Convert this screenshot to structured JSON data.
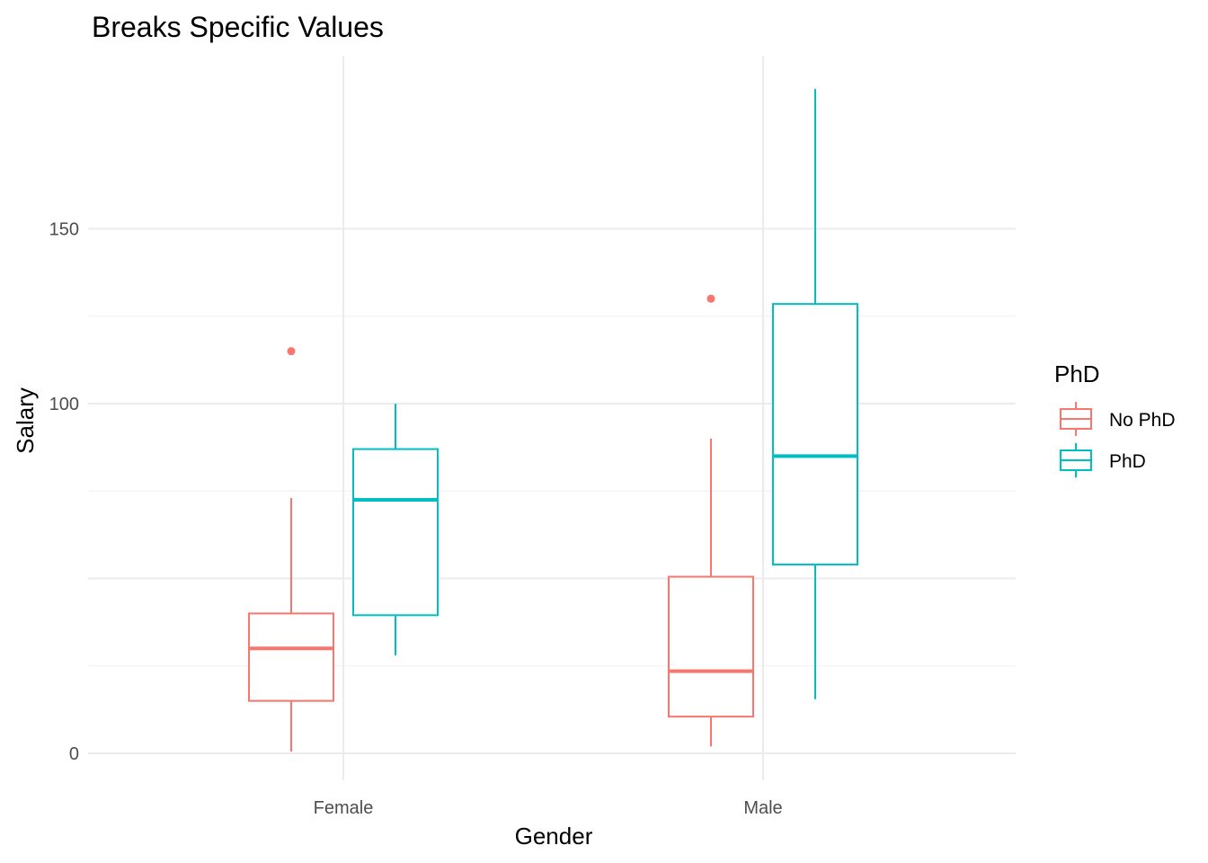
{
  "chart_data": {
    "type": "boxplot",
    "title": "Breaks Specific Values",
    "xlabel": "Gender",
    "ylabel": "Salary",
    "categories": [
      "Female",
      "Male"
    ],
    "ylim": [
      -8,
      190
    ],
    "y_ticks": [
      0,
      50,
      100,
      150
    ],
    "y_tick_labels": [
      "0",
      "",
      "100",
      "150"
    ],
    "grid": true,
    "legend": {
      "title": "PhD",
      "position": "right",
      "entries": [
        "No PhD",
        "PhD"
      ]
    },
    "colors": {
      "No PhD": "#F8766D",
      "PhD": "#00BFC4"
    },
    "series": [
      {
        "name": "No PhD",
        "color": "#F8766D",
        "boxes": [
          {
            "category": "Female",
            "whisker_low": 0.5,
            "q1": 15,
            "median": 30,
            "q3": 40,
            "whisker_high": 73,
            "outliers": [
              115
            ]
          },
          {
            "category": "Male",
            "whisker_low": 2,
            "q1": 10.5,
            "median": 23.5,
            "q3": 50.5,
            "whisker_high": 90,
            "outliers": [
              130
            ]
          }
        ]
      },
      {
        "name": "PhD",
        "color": "#00BFC4",
        "boxes": [
          {
            "category": "Female",
            "whisker_low": 28,
            "q1": 39.5,
            "median": 72.5,
            "q3": 87,
            "whisker_high": 100,
            "outliers": []
          },
          {
            "category": "Male",
            "whisker_low": 15.5,
            "q1": 54,
            "median": 85,
            "q3": 128.5,
            "whisker_high": 190,
            "outliers": []
          }
        ]
      }
    ]
  }
}
